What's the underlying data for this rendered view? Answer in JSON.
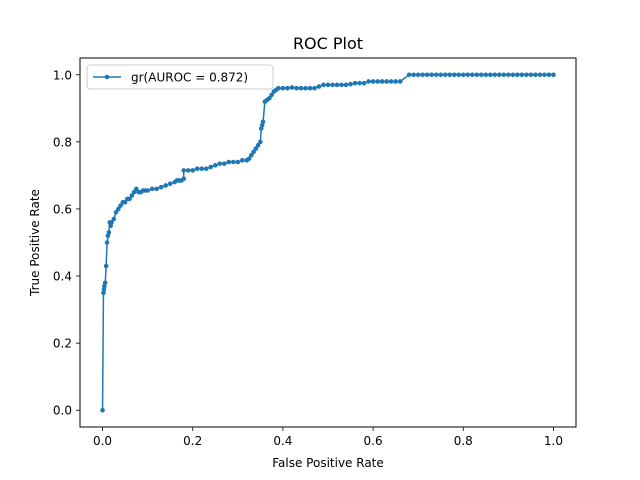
{
  "chart_data": {
    "type": "line",
    "title": "ROC Plot",
    "xlabel": "False Positive Rate",
    "ylabel": "True Positive Rate",
    "xlim": [
      -0.05,
      1.05
    ],
    "ylim": [
      -0.05,
      1.05
    ],
    "x_ticks": [
      "0.0",
      "0.2",
      "0.4",
      "0.6",
      "0.8",
      "1.0"
    ],
    "y_ticks": [
      "0.0",
      "0.2",
      "0.4",
      "0.6",
      "0.8",
      "1.0"
    ],
    "grid": false,
    "legend_position": "top-left",
    "series": [
      {
        "name": "gr(AUROC = 0.872)",
        "color": "#1f77b4",
        "marker": "circle",
        "x": [
          0.0,
          0.002,
          0.003,
          0.004,
          0.006,
          0.008,
          0.01,
          0.012,
          0.014,
          0.016,
          0.018,
          0.02,
          0.025,
          0.03,
          0.035,
          0.04,
          0.045,
          0.05,
          0.055,
          0.06,
          0.065,
          0.07,
          0.075,
          0.08,
          0.085,
          0.09,
          0.095,
          0.1,
          0.11,
          0.12,
          0.13,
          0.14,
          0.15,
          0.16,
          0.165,
          0.17,
          0.175,
          0.18,
          0.18,
          0.19,
          0.2,
          0.21,
          0.22,
          0.23,
          0.24,
          0.25,
          0.26,
          0.27,
          0.28,
          0.29,
          0.3,
          0.31,
          0.32,
          0.325,
          0.33,
          0.335,
          0.34,
          0.345,
          0.35,
          0.352,
          0.354,
          0.356,
          0.36,
          0.365,
          0.37,
          0.375,
          0.38,
          0.385,
          0.39,
          0.4,
          0.41,
          0.42,
          0.43,
          0.44,
          0.45,
          0.46,
          0.47,
          0.48,
          0.49,
          0.5,
          0.51,
          0.52,
          0.53,
          0.54,
          0.55,
          0.56,
          0.57,
          0.58,
          0.59,
          0.6,
          0.61,
          0.62,
          0.63,
          0.64,
          0.65,
          0.66,
          0.68,
          0.69,
          0.7,
          0.71,
          0.72,
          0.73,
          0.74,
          0.75,
          0.76,
          0.77,
          0.78,
          0.79,
          0.8,
          0.81,
          0.82,
          0.83,
          0.84,
          0.85,
          0.86,
          0.87,
          0.88,
          0.89,
          0.9,
          0.91,
          0.92,
          0.93,
          0.94,
          0.95,
          0.96,
          0.97,
          0.98,
          0.99,
          1.0
        ],
        "y": [
          0.0,
          0.35,
          0.36,
          0.37,
          0.38,
          0.43,
          0.5,
          0.52,
          0.53,
          0.56,
          0.55,
          0.56,
          0.57,
          0.59,
          0.6,
          0.61,
          0.62,
          0.62,
          0.63,
          0.63,
          0.64,
          0.65,
          0.66,
          0.65,
          0.65,
          0.655,
          0.655,
          0.655,
          0.66,
          0.66,
          0.665,
          0.67,
          0.675,
          0.68,
          0.685,
          0.685,
          0.685,
          0.69,
          0.715,
          0.715,
          0.715,
          0.72,
          0.72,
          0.72,
          0.725,
          0.73,
          0.735,
          0.735,
          0.74,
          0.74,
          0.74,
          0.745,
          0.745,
          0.75,
          0.76,
          0.77,
          0.78,
          0.79,
          0.8,
          0.84,
          0.85,
          0.86,
          0.92,
          0.925,
          0.93,
          0.94,
          0.95,
          0.955,
          0.96,
          0.96,
          0.96,
          0.962,
          0.96,
          0.96,
          0.96,
          0.96,
          0.96,
          0.965,
          0.97,
          0.97,
          0.97,
          0.97,
          0.97,
          0.97,
          0.972,
          0.975,
          0.975,
          0.975,
          0.98,
          0.98,
          0.98,
          0.98,
          0.98,
          0.98,
          0.98,
          0.98,
          1.0,
          1.0,
          1.0,
          1.0,
          1.0,
          1.0,
          1.0,
          1.0,
          1.0,
          1.0,
          1.0,
          1.0,
          1.0,
          1.0,
          1.0,
          1.0,
          1.0,
          1.0,
          1.0,
          1.0,
          1.0,
          1.0,
          1.0,
          1.0,
          1.0,
          1.0,
          1.0,
          1.0,
          1.0,
          1.0,
          1.0,
          1.0,
          1.0
        ]
      }
    ]
  }
}
